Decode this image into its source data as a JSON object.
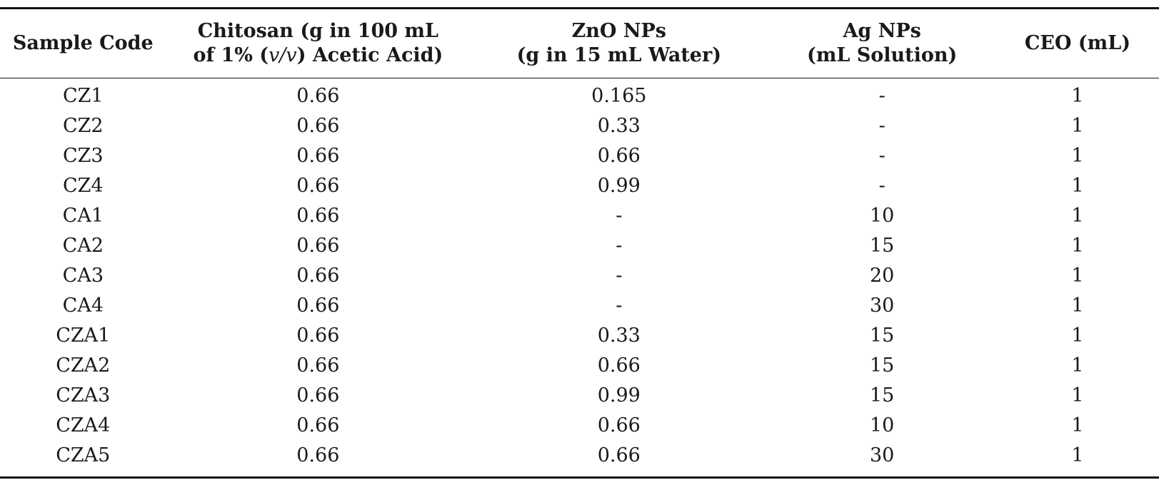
{
  "table": {
    "headers": [
      {
        "line1": "Sample Code",
        "line2": ""
      },
      {
        "line1": "Chitosan (g in 100 mL",
        "line2": "of 1% (v/v) Acetic Acid)"
      },
      {
        "line1": "ZnO NPs",
        "line2": "(g in 15 mL Water)"
      },
      {
        "line1": "Ag NPs",
        "line2": "(mL Solution)"
      },
      {
        "line1": "CEO (mL)",
        "line2": ""
      }
    ],
    "rows": [
      [
        "CZ1",
        "0.66",
        "0.165",
        "-",
        "1"
      ],
      [
        "CZ2",
        "0.66",
        "0.33",
        "-",
        "1"
      ],
      [
        "CZ3",
        "0.66",
        "0.66",
        "-",
        "1"
      ],
      [
        "CZ4",
        "0.66",
        "0.99",
        "-",
        "1"
      ],
      [
        "CA1",
        "0.66",
        "-",
        "10",
        "1"
      ],
      [
        "CA2",
        "0.66",
        "-",
        "15",
        "1"
      ],
      [
        "CA3",
        "0.66",
        "-",
        "20",
        "1"
      ],
      [
        "CA4",
        "0.66",
        "-",
        "30",
        "1"
      ],
      [
        "CZA1",
        "0.66",
        "0.33",
        "15",
        "1"
      ],
      [
        "CZA2",
        "0.66",
        "0.66",
        "15",
        "1"
      ],
      [
        "CZA3",
        "0.66",
        "0.99",
        "15",
        "1"
      ],
      [
        "CZA4",
        "0.66",
        "0.66",
        "10",
        "1"
      ],
      [
        "CZA5",
        "0.66",
        "0.66",
        "30",
        "1"
      ]
    ]
  }
}
